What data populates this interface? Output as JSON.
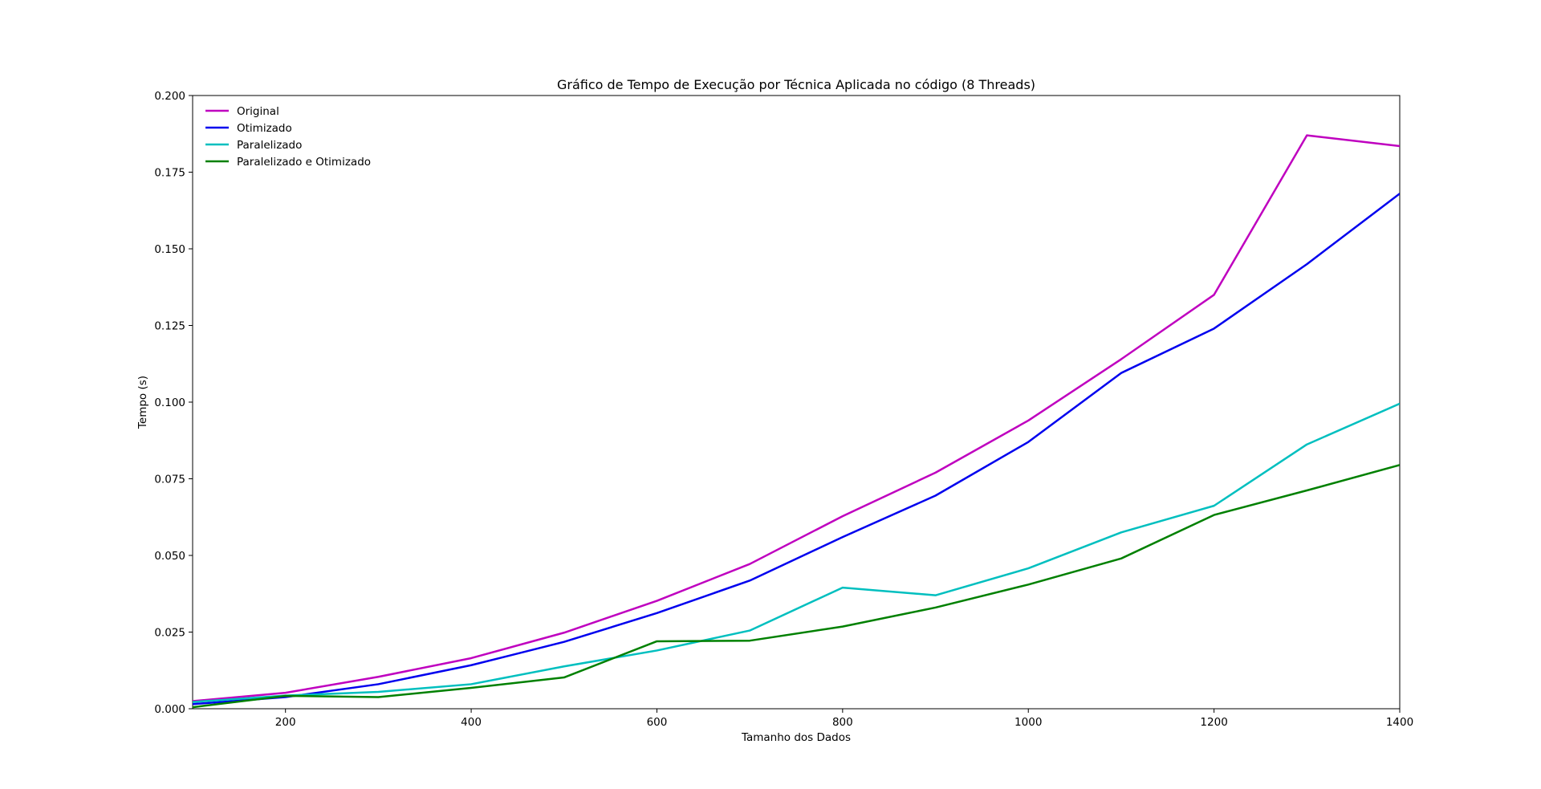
{
  "chart_data": {
    "type": "line",
    "title": "Gráfico de Tempo de Execução por Técnica Aplicada no código (8 Threads)",
    "xlabel": "Tamanho dos Dados",
    "ylabel": "Tempo (s)",
    "xlim": [
      100,
      1400
    ],
    "ylim": [
      0,
      0.2
    ],
    "xticks": [
      200,
      400,
      600,
      800,
      1000,
      1200,
      1400
    ],
    "xtick_labels": [
      "200",
      "400",
      "600",
      "800",
      "1000",
      "1200",
      "1400"
    ],
    "yticks": [
      0,
      0.025,
      0.05,
      0.075,
      0.1,
      0.125,
      0.15,
      0.175,
      0.2
    ],
    "ytick_labels": [
      "0.000",
      "0.025",
      "0.050",
      "0.075",
      "0.100",
      "0.125",
      "0.150",
      "0.175",
      "0.200"
    ],
    "grid": false,
    "legend_position": "top-left",
    "x": [
      100,
      200,
      300,
      400,
      500,
      600,
      700,
      800,
      900,
      1000,
      1100,
      1200,
      1300,
      1400
    ],
    "series": [
      {
        "name": "Original",
        "color": "#bf00bf",
        "values": [
          0.0025,
          0.0052,
          0.0104,
          0.0165,
          0.0248,
          0.0352,
          0.0472,
          0.0628,
          0.077,
          0.094,
          0.114,
          0.135,
          0.187,
          0.1835
        ]
      },
      {
        "name": "Otimizado",
        "color": "#0000ee",
        "values": [
          0.0015,
          0.0038,
          0.008,
          0.0142,
          0.0218,
          0.0312,
          0.0418,
          0.056,
          0.0695,
          0.087,
          0.1095,
          0.124,
          0.145,
          0.168
        ]
      },
      {
        "name": "Paralelizado",
        "color": "#00bfbf",
        "values": [
          0.0022,
          0.0043,
          0.0055,
          0.008,
          0.0138,
          0.019,
          0.0255,
          0.0395,
          0.037,
          0.0458,
          0.0575,
          0.0662,
          0.0862,
          0.0995
        ]
      },
      {
        "name": "Paralelizado e Otimizado",
        "color": "#008000",
        "values": [
          0.0005,
          0.0042,
          0.0038,
          0.0068,
          0.0102,
          0.022,
          0.0222,
          0.0268,
          0.033,
          0.0405,
          0.049,
          0.0632,
          0.0712,
          0.0795
        ]
      }
    ]
  }
}
